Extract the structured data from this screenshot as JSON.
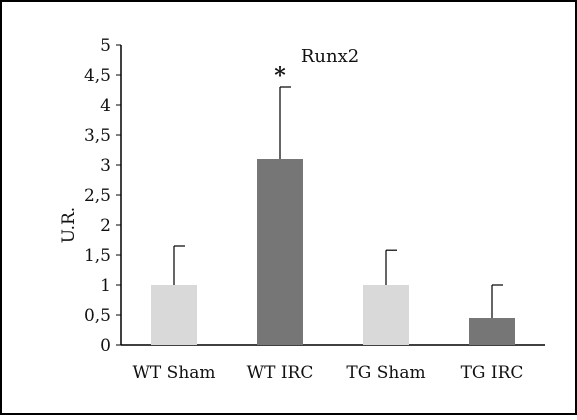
{
  "chart_data": {
    "type": "bar",
    "title": "Runx2",
    "xlabel": "",
    "ylabel": "U.R.",
    "ylim": [
      0,
      5
    ],
    "yticks": [
      "0",
      "0,5",
      "1",
      "1,5",
      "2",
      "2,5",
      "3",
      "3,5",
      "4",
      "4,5",
      "5"
    ],
    "grid": false,
    "categories": [
      "WT Sham",
      "WT IRC",
      "TG Sham",
      "TG IRC"
    ],
    "values": [
      1.0,
      3.1,
      1.0,
      0.45
    ],
    "errors": [
      0.65,
      1.2,
      0.58,
      0.55
    ],
    "annotations": [
      "",
      "*",
      "",
      ""
    ],
    "colors": [
      "#d9d9d9",
      "#767676",
      "#d9d9d9",
      "#767676"
    ]
  }
}
